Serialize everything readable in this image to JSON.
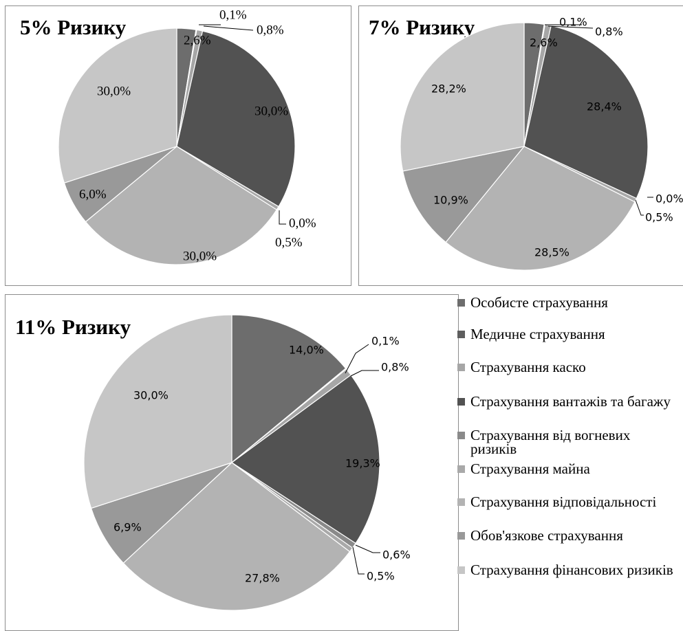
{
  "legend": {
    "entries": [
      {
        "label": "Особисте страхування",
        "color": "#6d6d6d"
      },
      {
        "label": "Медичне страхування",
        "color": "#5e5e5e"
      },
      {
        "label": "Страхування каско",
        "color": "#a6a6a6"
      },
      {
        "label": "Страхування вантажів та багажу",
        "color": "#525252"
      },
      {
        "label": "Страхування від вогневих ризиків",
        "color": "#8a8a8a"
      },
      {
        "label": "Страхування майна",
        "color": "#a9a9a9"
      },
      {
        "label": "Страхування відповідальності",
        "color": "#b3b3b3"
      },
      {
        "label": "Обов'язкове страхування",
        "color": "#999999"
      },
      {
        "label": "Страхування фінансових ризиків",
        "color": "#c6c6c6"
      }
    ]
  },
  "chart_data": [
    {
      "type": "pie",
      "title": "5% Ризику",
      "categories": [
        "Особисте страхування",
        "Медичне страхування",
        "Страхування каско",
        "Страхування вантажів та багажу",
        "Страхування від вогневих ризиків",
        "Страхування майна",
        "Страхування відповідальності",
        "Обов'язкове страхування",
        "Страхування фінансових ризиків"
      ],
      "values": [
        2.6,
        0.1,
        0.8,
        30.0,
        0.0,
        0.5,
        30.0,
        6.0,
        30.0
      ],
      "labels": [
        "2,6%",
        "0,1%",
        "0,8%",
        "30,0%",
        "0,0%",
        "0,5%",
        "30,0%",
        "6,0%",
        "30,0%"
      ]
    },
    {
      "type": "pie",
      "title": "7% Ризику",
      "categories": [
        "Особисте страхування",
        "Медичне страхування",
        "Страхування каско",
        "Страхування вантажів та багажу",
        "Страхування від вогневих ризиків",
        "Страхування майна",
        "Страхування відповідальності",
        "Обов'язкове страхування",
        "Страхування фінансових ризиків"
      ],
      "values": [
        2.6,
        0.1,
        0.8,
        28.4,
        0.0,
        0.5,
        28.5,
        10.9,
        28.2
      ],
      "labels": [
        "2,6%",
        "0,1%",
        "0,8%",
        "28,4%",
        "0,0%",
        "0,5%",
        "28,5%",
        "10,9%",
        "28,2%"
      ]
    },
    {
      "type": "pie",
      "title": "11% Ризику",
      "categories": [
        "Особисте страхування",
        "Медичне страхування",
        "Страхування каско",
        "Страхування вантажів та багажу",
        "Страхування від вогневих ризиків",
        "Страхування майна",
        "Страхування відповідальності",
        "Обов'язкове страхування",
        "Страхування фінансових ризиків"
      ],
      "values": [
        14.0,
        0.1,
        0.8,
        19.3,
        0.6,
        0.5,
        27.8,
        6.9,
        30.0
      ],
      "labels": [
        "14,0%",
        "0,1%",
        "0,8%",
        "19,3%",
        "0,6%",
        "0,5%",
        "27,8%",
        "6,9%",
        "30,0%"
      ]
    }
  ]
}
